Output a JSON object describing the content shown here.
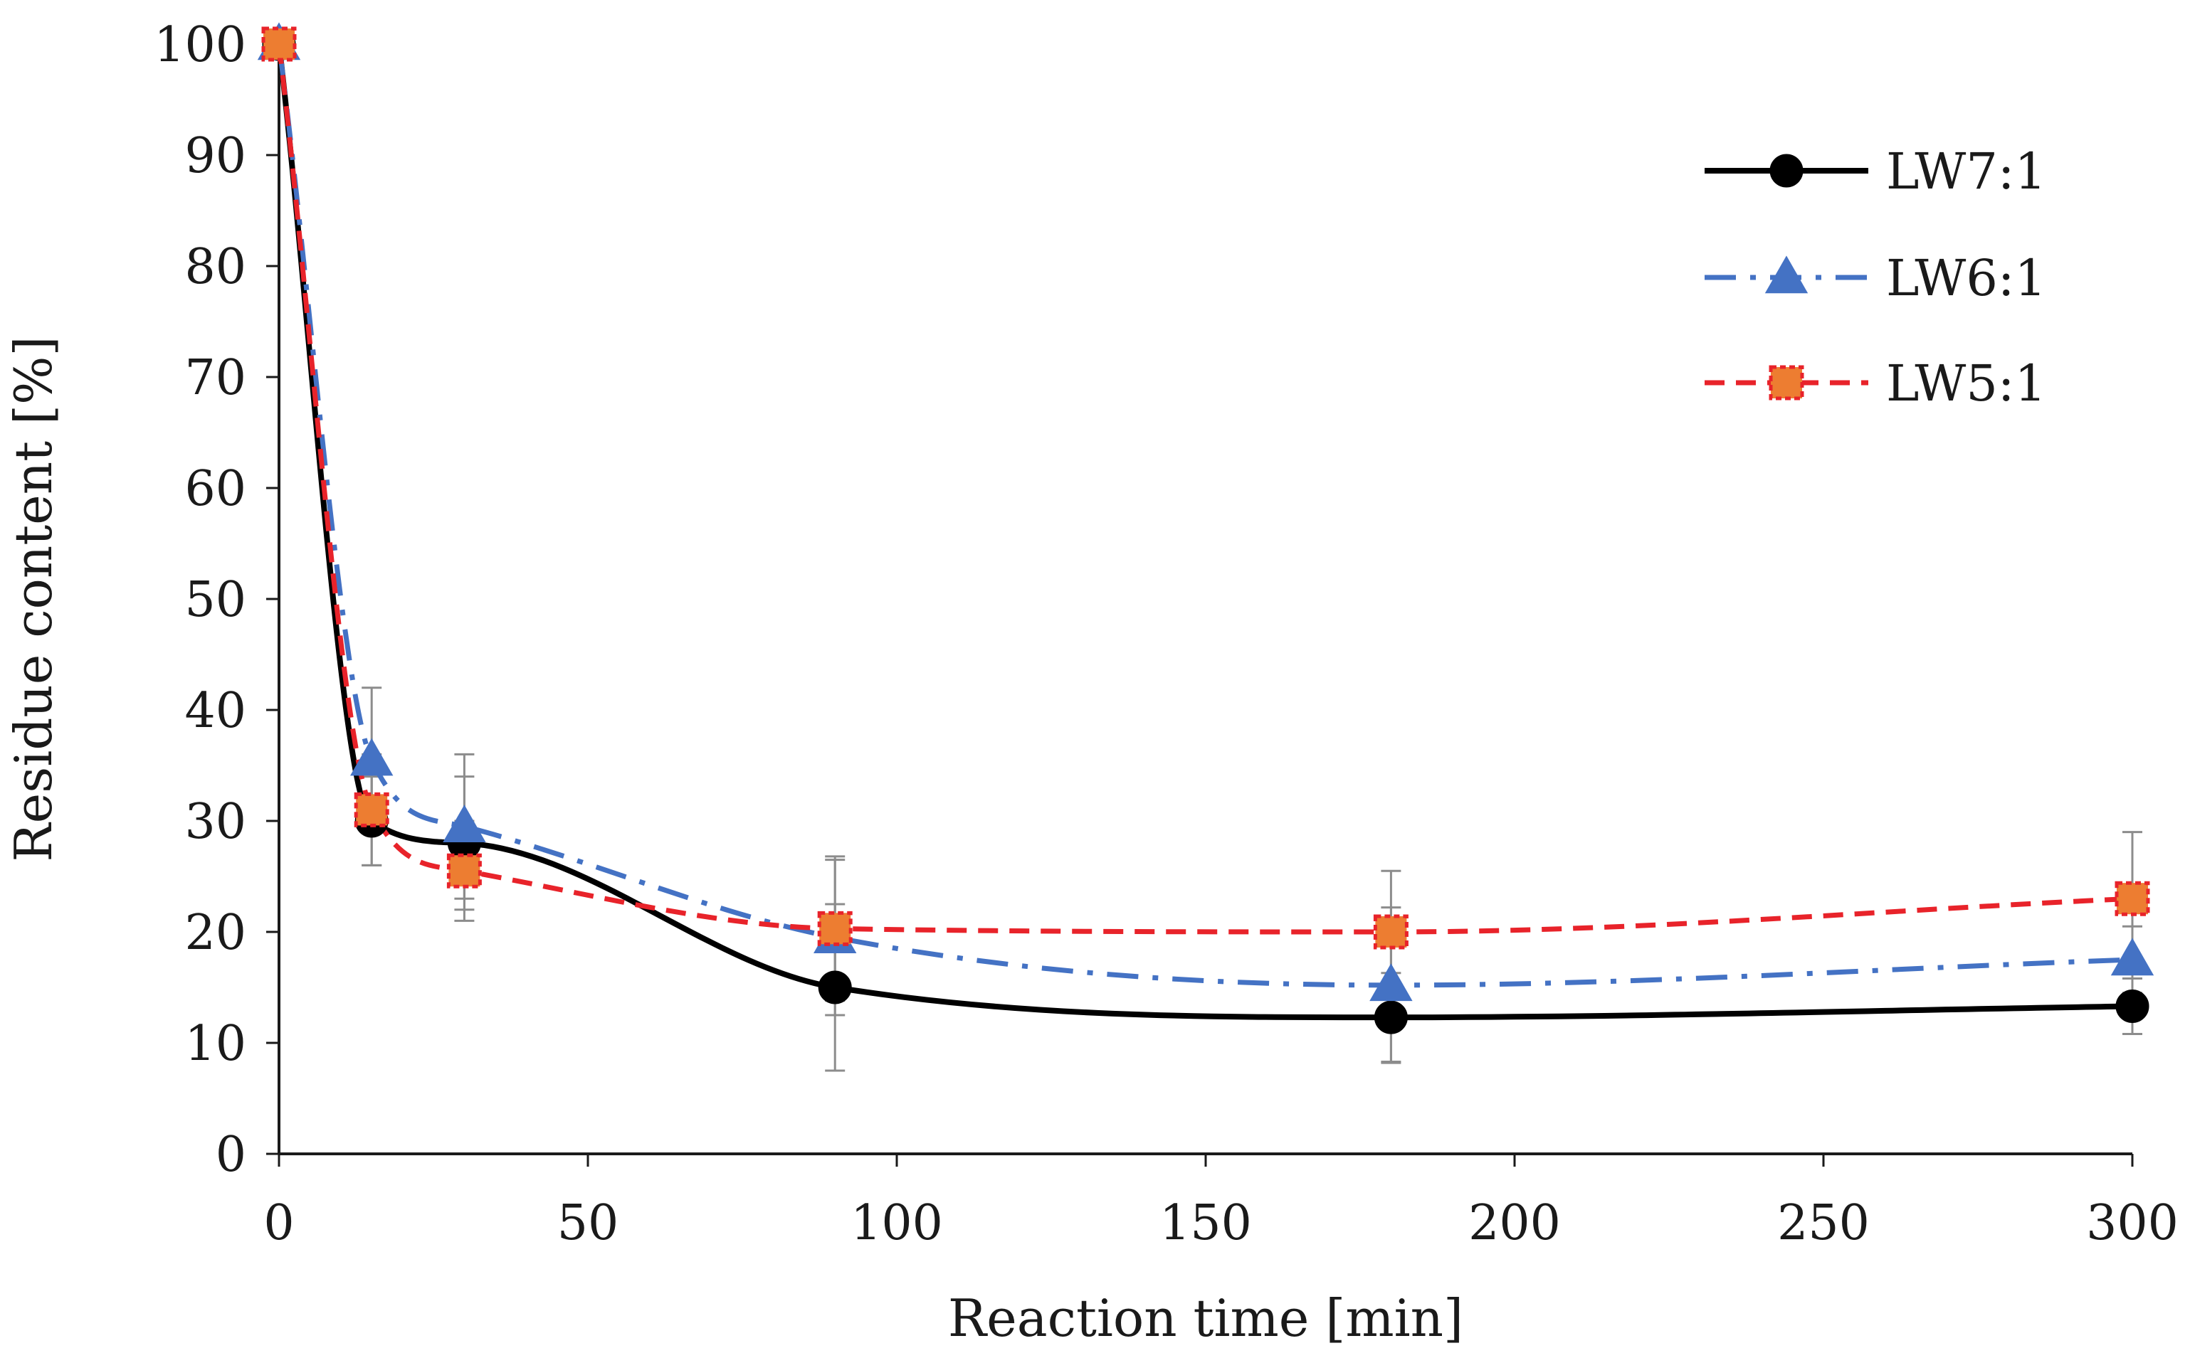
{
  "chart_data": {
    "type": "line",
    "title": "",
    "xlabel": "Reaction time [min]",
    "ylabel": "Residue content [%]",
    "xlim": [
      0,
      300
    ],
    "ylim": [
      0,
      100
    ],
    "xticks": [
      0,
      50,
      100,
      150,
      200,
      250,
      300
    ],
    "yticks": [
      0,
      10,
      20,
      30,
      40,
      50,
      60,
      70,
      80,
      90,
      100
    ],
    "legend_position": "top-right",
    "grid": false,
    "series": [
      {
        "name": "LW7:1",
        "color": "#000000",
        "marker": "circle",
        "line_style": "solid",
        "x": [
          0,
          15,
          30,
          90,
          180,
          300
        ],
        "y": [
          100,
          30,
          28,
          15,
          12.3,
          13.3
        ],
        "err": [
          0,
          4,
          6,
          7.5,
          4,
          2.5
        ]
      },
      {
        "name": "LW6:1",
        "color": "#4472C4",
        "marker": "triangle",
        "line_style": "dash-dot",
        "x": [
          0,
          15,
          30,
          90,
          180,
          300
        ],
        "y": [
          100,
          35.5,
          29.5,
          19.5,
          15.2,
          17.5
        ],
        "err": [
          0,
          6.5,
          6.5,
          7,
          7,
          3
        ]
      },
      {
        "name": "LW5:1",
        "color": "#E8232A",
        "marker_fill": "#ED7D31",
        "marker": "square",
        "line_style": "dashed",
        "x": [
          0,
          15,
          30,
          90,
          180,
          300
        ],
        "y": [
          100,
          31,
          25.5,
          20.3,
          20,
          23
        ],
        "err": [
          0,
          5,
          4.5,
          6.5,
          5.5,
          6
        ]
      }
    ]
  }
}
